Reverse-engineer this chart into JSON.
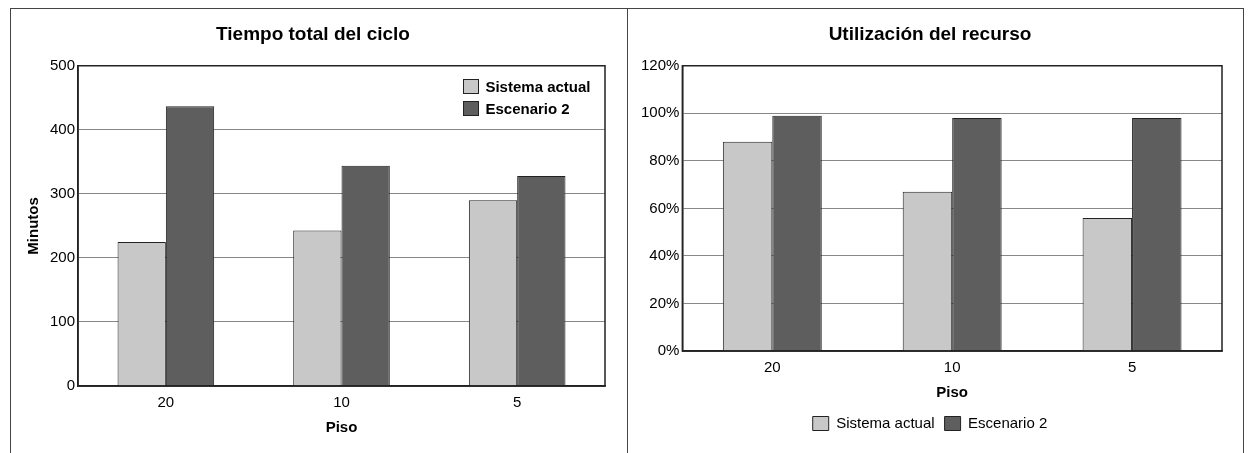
{
  "chart_data": [
    {
      "type": "bar",
      "title": "Tiempo total del ciclo",
      "xlabel": "Piso",
      "ylabel": "Minutos",
      "categories": [
        "20",
        "10",
        "5"
      ],
      "series": [
        {
          "name": "Sistema actual",
          "color": "#c8c8c8",
          "values": [
            225,
            243,
            290
          ]
        },
        {
          "name": "Escenario 2",
          "color": "#5e5e5e",
          "values": [
            437,
            344,
            328
          ]
        }
      ],
      "ylim": [
        0,
        500
      ],
      "yticks": [
        0,
        100,
        200,
        300,
        400,
        500
      ],
      "grid": "y",
      "legend": "top right"
    },
    {
      "type": "bar",
      "title": "Utilización del recurso",
      "xlabel": "Piso",
      "categories": [
        "20",
        "10",
        "5"
      ],
      "series": [
        {
          "name": "Sistema actual",
          "color": "#c8c8c8",
          "values": [
            88,
            67,
            56
          ]
        },
        {
          "name": "Escenario 2",
          "color": "#5e5e5e",
          "values": [
            99,
            98,
            98
          ]
        }
      ],
      "ylim": [
        0,
        120
      ],
      "yticks": [
        {
          "value": 0,
          "label": "0%"
        },
        {
          "value": 20,
          "label": "20%"
        },
        {
          "value": 40,
          "label": "40%"
        },
        {
          "value": 60,
          "label": "60%"
        },
        {
          "value": 80,
          "label": "80%"
        },
        {
          "value": 100,
          "label": "100%"
        },
        {
          "value": 120,
          "label": "120%"
        }
      ],
      "grid": "y",
      "legend": "bottom"
    }
  ]
}
